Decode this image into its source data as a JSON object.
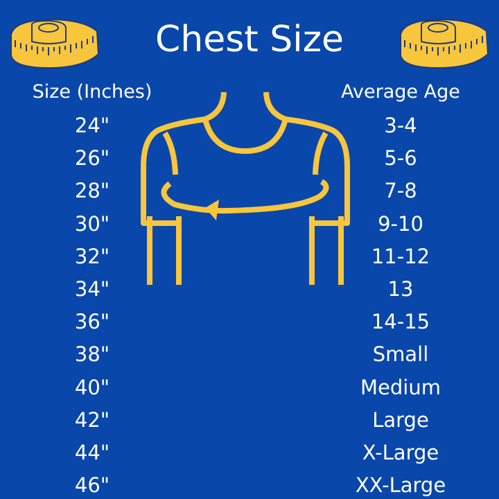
{
  "title": "Chest Size",
  "headers": {
    "size": "Size (Inches)",
    "age": "Average Age"
  },
  "rows": [
    {
      "size": "24\"",
      "age": "3-4"
    },
    {
      "size": "26\"",
      "age": "5-6"
    },
    {
      "size": "28\"",
      "age": "7-8"
    },
    {
      "size": "30\"",
      "age": "9-10"
    },
    {
      "size": "32\"",
      "age": "11-12"
    },
    {
      "size": "34\"",
      "age": "13"
    },
    {
      "size": "36\"",
      "age": "14-15"
    },
    {
      "size": "38\"",
      "age": "Small"
    },
    {
      "size": "40\"",
      "age": "Medium"
    },
    {
      "size": "42\"",
      "age": "Large"
    },
    {
      "size": "44\"",
      "age": "X-Large"
    },
    {
      "size": "46\"",
      "age": "XX-Large"
    }
  ],
  "colors": {
    "background": "#0a47ab",
    "accent": "#f8c63d",
    "text": "#ffffff"
  },
  "icons": [
    "measuring-tape-icon",
    "torso-chest-measure-icon"
  ]
}
